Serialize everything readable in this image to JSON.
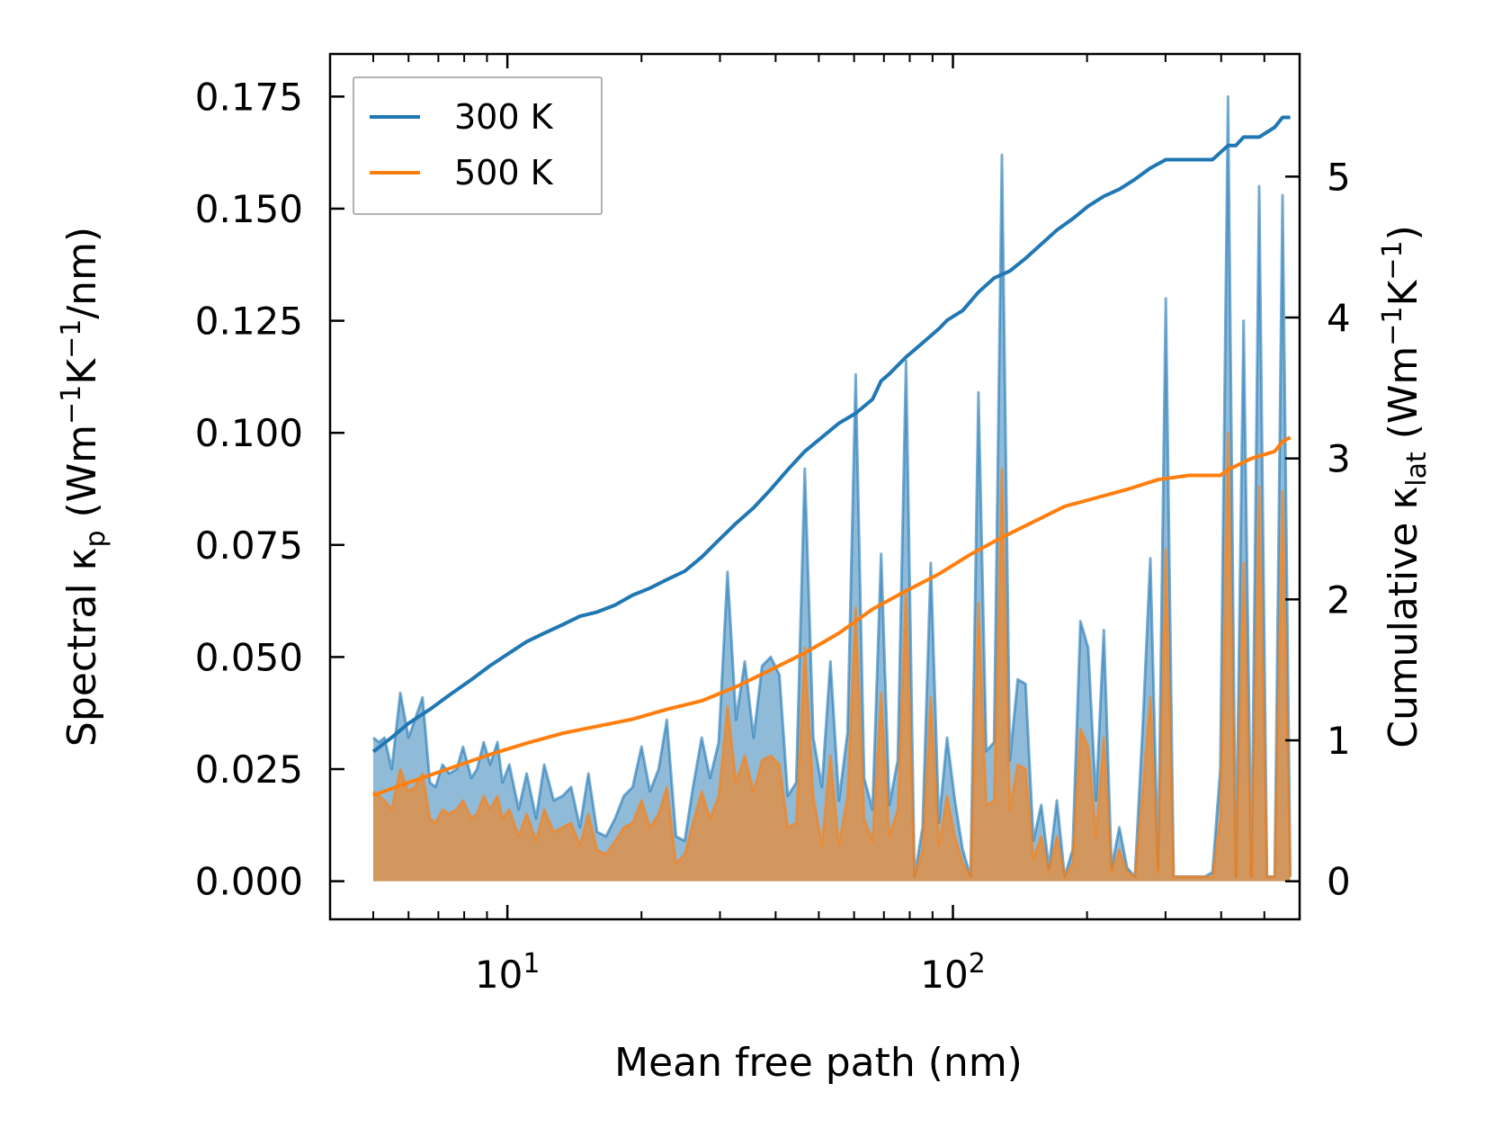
{
  "chart_data": {
    "type": "line",
    "xscale": "log",
    "xlim": [
      4.0,
      600.0
    ],
    "xlabel": "Mean free path (nm)",
    "xticks": [
      {
        "value": 10,
        "base": "10",
        "exp": "1"
      },
      {
        "value": 100,
        "base": "10",
        "exp": "2"
      }
    ],
    "left_axis": {
      "label_parts": [
        "Spectral κ",
        "p",
        " (Wm",
        "−1",
        "K",
        "−1",
        "/nm)"
      ],
      "ylim": [
        -0.0085,
        0.1845
      ],
      "ticks": [
        0,
        0.025,
        0.05,
        0.075,
        0.1,
        0.125,
        0.15,
        0.175
      ],
      "tick_labels": [
        "0.000",
        "0.025",
        "0.050",
        "0.075",
        "0.100",
        "0.125",
        "0.150",
        "0.175"
      ]
    },
    "right_axis": {
      "label_parts": [
        "Cumulative κ",
        "lat",
        " (Wm",
        "−1",
        "K",
        "−1",
        ")"
      ],
      "ylim": [
        -0.27,
        5.87
      ],
      "ticks": [
        0,
        1,
        2,
        3,
        4,
        5
      ],
      "tick_labels": [
        "0",
        "1",
        "2",
        "3",
        "4",
        "5"
      ]
    },
    "colors": {
      "300K": "#1f77b4",
      "500K": "#ff7f0e"
    },
    "legend": {
      "position": "top-left",
      "entries": [
        "300 K",
        "500 K"
      ]
    },
    "spectral_series": [
      {
        "name": "300 K",
        "x": [
          5.0,
          5.15,
          5.3,
          5.5,
          5.75,
          6.0,
          6.2,
          6.45,
          6.7,
          6.9,
          7.15,
          7.4,
          7.7,
          7.95,
          8.3,
          8.55,
          8.85,
          9.15,
          9.5,
          9.75,
          10.1,
          10.6,
          11.05,
          11.6,
          12.1,
          12.7,
          13.3,
          13.9,
          14.55,
          15.2,
          15.9,
          16.65,
          17.45,
          18.25,
          19.1,
          20.0,
          20.9,
          21.85,
          22.8,
          23.9,
          25.0,
          26.1,
          27.3,
          28.5,
          29.8,
          31.2,
          32.6,
          34.1,
          35.7,
          37.3,
          39.0,
          40.8,
          42.6,
          44.5,
          46.5,
          48.6,
          50.8,
          53.1,
          55.5,
          58.0,
          60.5,
          63.2,
          66.0,
          69.0,
          72.0,
          75.2,
          78.5,
          82.0,
          85.5,
          89.2,
          93.0,
          97.0,
          101.0,
          105.2,
          109.6,
          114.1,
          118.8,
          123.7,
          128.8,
          134.2,
          139.8,
          145.6,
          151.6,
          157.8,
          164.3,
          171.1,
          178.2,
          185.6,
          193.3,
          201.2,
          209.5,
          218.1,
          227.0,
          236.3,
          246.0,
          256.0,
          266.5,
          277.4,
          288.7,
          300.5,
          312.8,
          325.6,
          339.0,
          352.9,
          367.4,
          382.5,
          398.2,
          414.5,
          431.5,
          449.2,
          467.6,
          486.8,
          506.8,
          527.6,
          549.2,
          571.7
        ],
        "y": [
          0.032,
          0.031,
          0.032,
          0.025,
          0.042,
          0.032,
          0.036,
          0.041,
          0.022,
          0.021,
          0.026,
          0.024,
          0.025,
          0.03,
          0.023,
          0.025,
          0.031,
          0.026,
          0.031,
          0.022,
          0.026,
          0.016,
          0.024,
          0.014,
          0.026,
          0.018,
          0.019,
          0.021,
          0.012,
          0.024,
          0.011,
          0.01,
          0.014,
          0.019,
          0.021,
          0.03,
          0.02,
          0.025,
          0.036,
          0.01,
          0.009,
          0.021,
          0.032,
          0.023,
          0.031,
          0.069,
          0.036,
          0.049,
          0.032,
          0.048,
          0.05,
          0.046,
          0.019,
          0.022,
          0.092,
          0.032,
          0.021,
          0.049,
          0.018,
          0.033,
          0.113,
          0.023,
          0.016,
          0.073,
          0.017,
          0.027,
          0.116,
          0.001,
          0.012,
          0.071,
          0.013,
          0.032,
          0.018,
          0.007,
          0.001,
          0.109,
          0.029,
          0.031,
          0.162,
          0.027,
          0.045,
          0.044,
          0.009,
          0.017,
          0.003,
          0.018,
          0.001,
          0.007,
          0.058,
          0.052,
          0.018,
          0.056,
          0.003,
          0.012,
          0.003,
          0.001,
          0.034,
          0.072,
          0.003,
          0.13,
          0.001,
          0.001,
          0.001,
          0.001,
          0.001,
          0.002,
          0.025,
          0.175,
          0.001,
          0.125,
          0.001,
          0.155,
          0.001,
          0.001,
          0.153,
          0.001
        ],
        "fill": true
      },
      {
        "name": "500 K",
        "x": [
          5.0,
          5.15,
          5.3,
          5.5,
          5.75,
          6.0,
          6.2,
          6.45,
          6.7,
          6.9,
          7.15,
          7.4,
          7.7,
          7.95,
          8.3,
          8.55,
          8.85,
          9.15,
          9.5,
          9.75,
          10.1,
          10.6,
          11.05,
          11.6,
          12.1,
          12.7,
          13.3,
          13.9,
          14.55,
          15.2,
          15.9,
          16.65,
          17.45,
          18.25,
          19.1,
          20.0,
          20.9,
          21.85,
          22.8,
          23.9,
          25.0,
          26.1,
          27.3,
          28.5,
          29.8,
          31.2,
          32.6,
          34.1,
          35.7,
          37.3,
          39.0,
          40.8,
          42.6,
          44.5,
          46.5,
          48.6,
          50.8,
          53.1,
          55.5,
          58.0,
          60.5,
          63.2,
          66.0,
          69.0,
          72.0,
          75.2,
          78.5,
          82.0,
          85.5,
          89.2,
          93.0,
          97.0,
          101.0,
          105.2,
          109.6,
          114.1,
          118.8,
          123.7,
          128.8,
          134.2,
          139.8,
          145.6,
          151.6,
          157.8,
          164.3,
          171.1,
          178.2,
          185.6,
          193.3,
          201.2,
          209.5,
          218.1,
          227.0,
          236.3,
          246.0,
          256.0,
          266.5,
          277.4,
          288.7,
          300.5,
          312.8,
          325.6,
          339.0,
          352.9,
          367.4,
          382.5,
          398.2,
          414.5,
          431.5,
          449.2,
          467.6,
          486.8,
          506.8,
          527.6,
          549.2,
          571.7
        ],
        "y": [
          0.02,
          0.019,
          0.018,
          0.016,
          0.025,
          0.02,
          0.021,
          0.024,
          0.014,
          0.013,
          0.016,
          0.015,
          0.016,
          0.018,
          0.014,
          0.015,
          0.019,
          0.016,
          0.019,
          0.014,
          0.016,
          0.01,
          0.015,
          0.009,
          0.016,
          0.011,
          0.012,
          0.013,
          0.008,
          0.015,
          0.007,
          0.006,
          0.009,
          0.012,
          0.013,
          0.018,
          0.012,
          0.015,
          0.021,
          0.004,
          0.006,
          0.013,
          0.02,
          0.014,
          0.019,
          0.039,
          0.022,
          0.028,
          0.02,
          0.027,
          0.028,
          0.026,
          0.012,
          0.013,
          0.052,
          0.019,
          0.008,
          0.028,
          0.008,
          0.019,
          0.061,
          0.014,
          0.009,
          0.042,
          0.01,
          0.016,
          0.065,
          0.001,
          0.007,
          0.041,
          0.008,
          0.019,
          0.01,
          0.004,
          0.001,
          0.062,
          0.017,
          0.018,
          0.092,
          0.016,
          0.026,
          0.025,
          0.005,
          0.01,
          0.002,
          0.01,
          0.001,
          0.004,
          0.034,
          0.03,
          0.01,
          0.032,
          0.002,
          0.007,
          0.002,
          0.001,
          0.02,
          0.041,
          0.002,
          0.074,
          0.001,
          0.001,
          0.001,
          0.001,
          0.001,
          0.001,
          0.014,
          0.1,
          0.001,
          0.071,
          0.001,
          0.088,
          0.001,
          0.001,
          0.087,
          0.001
        ],
        "fill": true
      }
    ],
    "cumulative_series": [
      {
        "name": "300 K",
        "x": [
          5.0,
          5.5,
          6.0,
          6.7,
          7.4,
          8.3,
          9.15,
          10.1,
          11.05,
          12.1,
          13.3,
          14.55,
          15.9,
          17.45,
          19.1,
          20.9,
          22.8,
          25.0,
          27.3,
          29.8,
          32.6,
          35.7,
          39.0,
          42.6,
          46.5,
          50.8,
          53.1,
          55.5,
          60.5,
          66.0,
          69.0,
          72.0,
          78.5,
          85.5,
          93.0,
          97.0,
          105.2,
          114.1,
          123.7,
          134.2,
          145.6,
          151.6,
          157.8,
          171.1,
          185.6,
          201.2,
          218.1,
          236.3,
          256.0,
          277.4,
          300.5,
          325.6,
          352.9,
          382.5,
          414.5,
          431.5,
          449.2,
          486.8,
          527.6,
          549.2,
          571.7
        ],
        "y": [
          0.92,
          1.02,
          1.12,
          1.22,
          1.32,
          1.43,
          1.53,
          1.62,
          1.7,
          1.76,
          1.82,
          1.88,
          1.91,
          1.96,
          2.03,
          2.08,
          2.14,
          2.2,
          2.3,
          2.42,
          2.54,
          2.65,
          2.78,
          2.92,
          3.05,
          3.15,
          3.2,
          3.25,
          3.32,
          3.42,
          3.55,
          3.6,
          3.72,
          3.82,
          3.92,
          3.98,
          4.05,
          4.18,
          4.28,
          4.33,
          4.42,
          4.47,
          4.52,
          4.62,
          4.7,
          4.79,
          4.86,
          4.91,
          4.98,
          5.06,
          5.12,
          5.12,
          5.12,
          5.12,
          5.22,
          5.22,
          5.28,
          5.28,
          5.35,
          5.42,
          5.42
        ],
        "fill": false
      },
      {
        "name": "500 K",
        "x": [
          5.0,
          6.0,
          7.4,
          9.15,
          11.05,
          13.3,
          15.9,
          19.1,
          22.8,
          27.3,
          32.6,
          39.0,
          46.5,
          55.5,
          66.0,
          78.5,
          93.0,
          109.6,
          128.8,
          151.6,
          178.2,
          209.5,
          246.0,
          288.7,
          339.0,
          398.2,
          414.5,
          467.6,
          527.6,
          549.2,
          571.7
        ],
        "y": [
          0.61,
          0.7,
          0.8,
          0.9,
          0.98,
          1.05,
          1.1,
          1.15,
          1.22,
          1.28,
          1.38,
          1.5,
          1.62,
          1.76,
          1.93,
          2.06,
          2.18,
          2.32,
          2.44,
          2.55,
          2.66,
          2.72,
          2.78,
          2.85,
          2.88,
          2.88,
          2.92,
          3.0,
          3.05,
          3.12,
          3.15
        ],
        "fill": false
      }
    ]
  }
}
